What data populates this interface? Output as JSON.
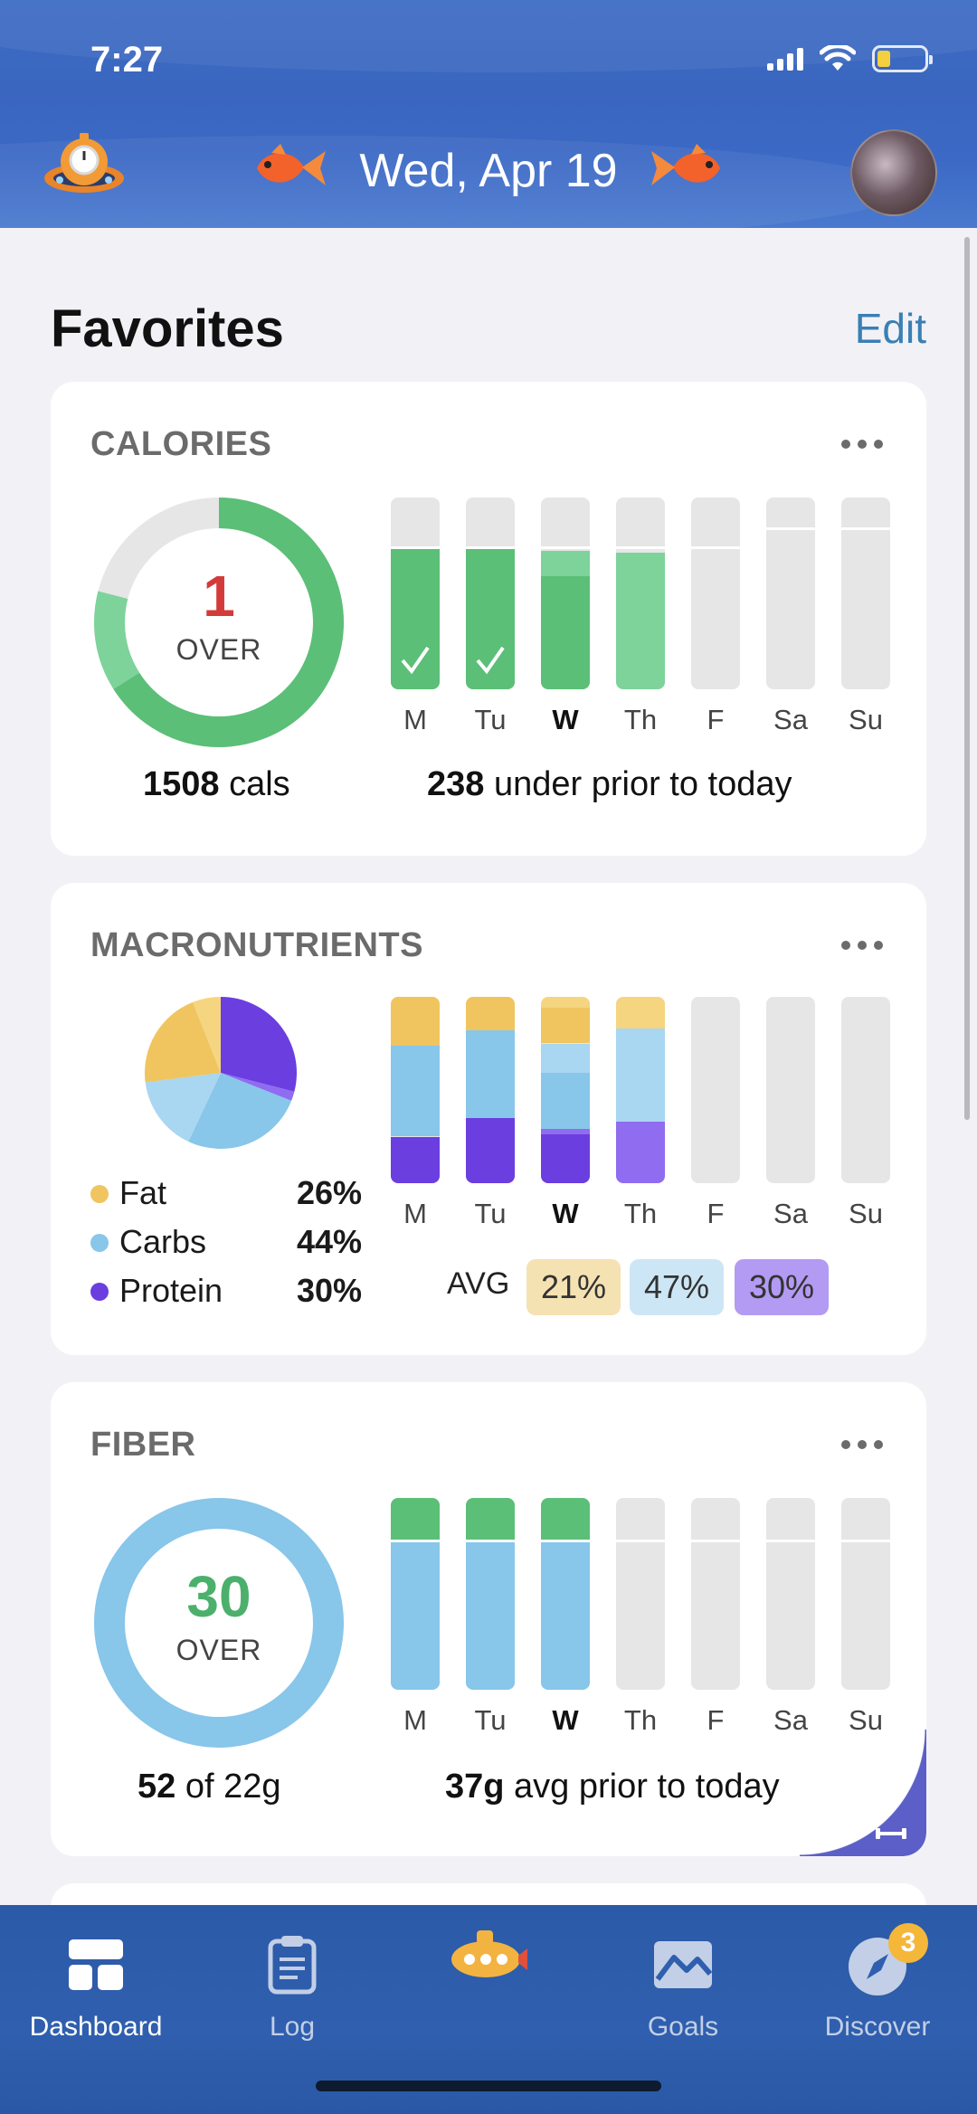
{
  "status_bar": {
    "time": "7:27"
  },
  "header": {
    "date": "Wed, Apr 19",
    "mascot_icon": "submarine-scale-icon",
    "avatar": "user-avatar"
  },
  "favorites": {
    "title": "Favorites",
    "edit_label": "Edit"
  },
  "days": [
    "M",
    "Tu",
    "W",
    "Th",
    "F",
    "Sa",
    "Su"
  ],
  "calories": {
    "title": "CALORIES",
    "donut_number": "1",
    "donut_status": "OVER",
    "total_value": "1508",
    "total_unit": "cals",
    "prior_value": "238",
    "prior_text": "under prior to today",
    "bars": [
      {
        "fill": 0.74,
        "color": "#5bbf77",
        "goal": 0.73,
        "check": true
      },
      {
        "fill": 0.74,
        "color": "#5bbf77",
        "goal": 0.73,
        "check": true
      },
      {
        "fill": 0.72,
        "color": "#5bbf77",
        "light": 0.13,
        "goal": 0.73
      },
      {
        "fill": 0.71,
        "color": "#7dd39a",
        "goal": 0.73
      },
      {
        "fill": 0,
        "goal": 0.73
      },
      {
        "fill": 0,
        "goal": 0.83
      },
      {
        "fill": 0,
        "goal": 0.83
      }
    ],
    "colors": {
      "ring": "#5bbf77",
      "ring_light": "#7dd39a",
      "track": "#e6e6e6",
      "over": "#d33b3b"
    }
  },
  "macros": {
    "title": "MACRONUTRIENTS",
    "legend": [
      {
        "label": "Fat",
        "pct": "26%",
        "color": "#f0c55f"
      },
      {
        "label": "Carbs",
        "pct": "44%",
        "color": "#88c6ea"
      },
      {
        "label": "Protein",
        "pct": "30%",
        "color": "#6b3ee0"
      }
    ],
    "pie": [
      {
        "name": "Protein",
        "value": 29,
        "color": "#6b3ee0"
      },
      {
        "name": "Protein-light",
        "value": 2,
        "color": "#8f6cf0"
      },
      {
        "name": "Carbs",
        "value": 26,
        "color": "#88c6ea"
      },
      {
        "name": "Carbs-light",
        "value": 16,
        "color": "#a9d6f1"
      },
      {
        "name": "Fat",
        "value": 21,
        "color": "#f0c55f"
      },
      {
        "name": "Fat-light",
        "value": 6,
        "color": "#f5d57f"
      }
    ],
    "bars": [
      [
        {
          "v": 0.26,
          "c": "#f0c55f"
        },
        {
          "v": 0.49,
          "c": "#88c6ea"
        },
        {
          "v": 0.25,
          "c": "#6b3ee0"
        }
      ],
      [
        {
          "v": 0.18,
          "c": "#f0c55f"
        },
        {
          "v": 0.47,
          "c": "#88c6ea"
        },
        {
          "v": 0.35,
          "c": "#6b3ee0"
        }
      ],
      [
        {
          "v": 0.06,
          "c": "#f5d57f"
        },
        {
          "v": 0.19,
          "c": "#f0c55f"
        },
        {
          "v": 0.16,
          "c": "#a9d6f1"
        },
        {
          "v": 0.3,
          "c": "#88c6ea"
        },
        {
          "v": 0.03,
          "c": "#8f6cf0"
        },
        {
          "v": 0.26,
          "c": "#6b3ee0"
        }
      ],
      [
        {
          "v": 0.17,
          "c": "#f5d57f"
        },
        {
          "v": 0.5,
          "c": "#a9d6f1"
        },
        {
          "v": 0.33,
          "c": "#8f6cf0"
        }
      ],
      [],
      [],
      []
    ],
    "avg_label": "AVG",
    "avg": [
      {
        "value": "21%",
        "color": "#f5e2b3"
      },
      {
        "value": "47%",
        "color": "#cde6f5"
      },
      {
        "value": "30%",
        "color": "#b39af2"
      }
    ]
  },
  "fiber": {
    "title": "FIBER",
    "donut_number": "30",
    "donut_status": "OVER",
    "total_value": "52",
    "total_text": "of 22g",
    "prior_value": "37g",
    "prior_text": "avg prior to today",
    "bars": [
      {
        "over": 0.23,
        "goal": 0.77
      },
      {
        "over": 0.23,
        "goal": 0.77
      },
      {
        "over": 0.23,
        "goal": 0.77
      },
      {
        "over": 0,
        "goal": 0.77
      },
      {
        "over": 0,
        "goal": 0.77
      },
      {
        "over": 0,
        "goal": 0.77
      },
      {
        "over": 0,
        "goal": 0.77
      }
    ],
    "colors": {
      "base": "#88c6ea",
      "over": "#5bbf77",
      "text": "#4cb06c"
    }
  },
  "tabbar": {
    "items": [
      {
        "label": "Dashboard",
        "icon": "dashboard-icon",
        "active": true
      },
      {
        "label": "Log",
        "icon": "clipboard-icon"
      },
      {
        "label": "",
        "icon": "submarine-icon"
      },
      {
        "label": "Goals",
        "icon": "goals-icon"
      },
      {
        "label": "Discover",
        "icon": "compass-icon",
        "badge": "3"
      }
    ]
  }
}
